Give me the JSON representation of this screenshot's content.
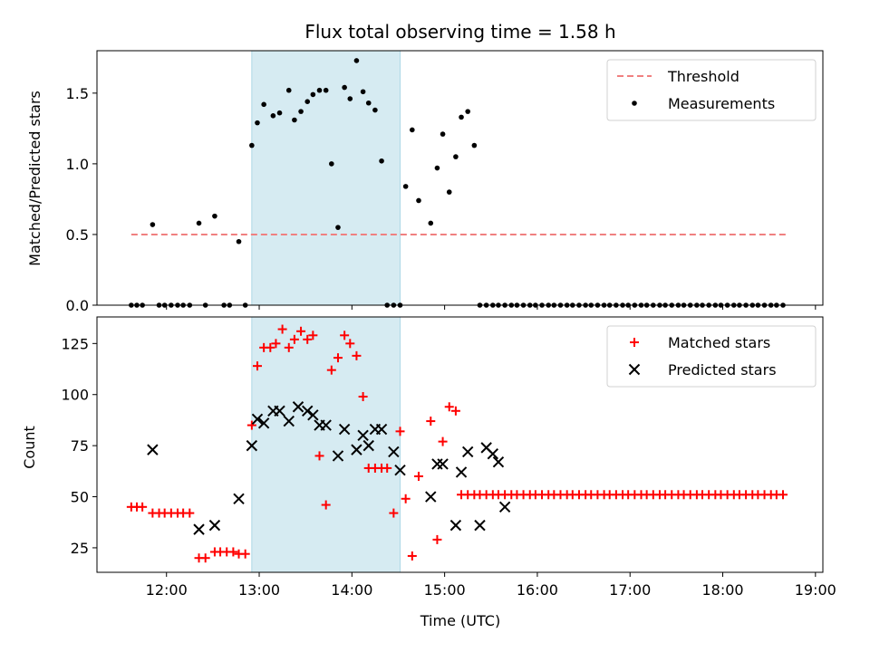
{
  "title": "Flux total observing time = 1.58 h",
  "colors": {
    "threshold": "#f08080",
    "measurement": "#000000",
    "matched": "#ff0000",
    "predicted": "#000000",
    "shade": "#add8e6"
  },
  "chart_data": [
    {
      "type": "scatter",
      "ylabel": "Matched/Predicted stars",
      "xlim": [
        11.25,
        19.08
      ],
      "ylim": [
        0,
        1.8
      ],
      "yticks": [
        0.0,
        0.5,
        1.0,
        1.5
      ],
      "ytick_labels": [
        "0.0",
        "0.5",
        "1.0",
        "1.5"
      ],
      "grid": false,
      "legend_position": "top-right",
      "shaded_interval": [
        12.92,
        14.52
      ],
      "threshold": {
        "name": "Threshold",
        "value": 0.5,
        "x": [
          11.62,
          18.68
        ]
      },
      "series": [
        {
          "name": "Measurements",
          "x": [
            11.62,
            11.68,
            11.74,
            11.85,
            11.92,
            11.98,
            12.05,
            12.12,
            12.18,
            12.25,
            12.35,
            12.42,
            12.52,
            12.62,
            12.68,
            12.78,
            12.85,
            12.92,
            12.98,
            13.05,
            13.15,
            13.22,
            13.32,
            13.38,
            13.45,
            13.52,
            13.58,
            13.65,
            13.72,
            13.78,
            13.85,
            13.92,
            13.98,
            14.05,
            14.12,
            14.18,
            14.25,
            14.32,
            14.38,
            14.45,
            14.52,
            14.58,
            14.65,
            14.72,
            14.85,
            14.92,
            14.98,
            15.05,
            15.12,
            15.18,
            15.25,
            15.32,
            15.38,
            15.45,
            15.52,
            15.58,
            15.65,
            15.72,
            15.78,
            15.85,
            15.92,
            15.98,
            16.05,
            16.12,
            16.18,
            16.25,
            16.32,
            16.38,
            16.45,
            16.52,
            16.58,
            16.65,
            16.72,
            16.78,
            16.85,
            16.92,
            16.98,
            17.05,
            17.12,
            17.18,
            17.25,
            17.32,
            17.38,
            17.45,
            17.52,
            17.58,
            17.65,
            17.72,
            17.78,
            17.85,
            17.92,
            17.98,
            18.05,
            18.12,
            18.18,
            18.25,
            18.32,
            18.38,
            18.45,
            18.52,
            18.58,
            18.65
          ],
          "y": [
            0,
            0,
            0,
            0.57,
            0,
            0,
            0,
            0,
            0,
            0,
            0.58,
            0,
            0.63,
            0,
            0,
            0.45,
            0,
            1.13,
            1.29,
            1.42,
            1.34,
            1.36,
            1.52,
            1.31,
            1.37,
            1.44,
            1.49,
            1.52,
            1.52,
            1.0,
            0.55,
            1.54,
            1.46,
            1.73,
            1.51,
            1.43,
            1.38,
            1.02,
            0,
            0,
            0,
            0.84,
            1.24,
            0.74,
            0.58,
            0.97,
            1.21,
            0.8,
            1.05,
            1.33,
            1.37,
            1.13,
            0,
            0,
            0,
            0,
            0,
            0,
            0,
            0,
            0,
            0,
            0,
            0,
            0,
            0,
            0,
            0,
            0,
            0,
            0,
            0,
            0,
            0,
            0,
            0,
            0,
            0,
            0,
            0,
            0,
            0,
            0,
            0,
            0,
            0,
            0,
            0,
            0,
            0,
            0,
            0,
            0,
            0,
            0,
            0,
            0,
            0,
            0,
            0,
            0,
            0
          ]
        }
      ]
    },
    {
      "type": "scatter",
      "xlabel": "Time (UTC)",
      "ylabel": "Count",
      "xlim": [
        11.25,
        19.08
      ],
      "ylim": [
        13,
        138
      ],
      "xticks": [
        12,
        13,
        14,
        15,
        16,
        17,
        18,
        19
      ],
      "xtick_labels": [
        "12:00",
        "13:00",
        "14:00",
        "15:00",
        "16:00",
        "17:00",
        "18:00",
        "19:00"
      ],
      "yticks": [
        25,
        50,
        75,
        100,
        125
      ],
      "ytick_labels": [
        "25",
        "50",
        "75",
        "100",
        "125"
      ],
      "grid": false,
      "legend_position": "top-right",
      "shaded_interval": [
        12.92,
        14.52
      ],
      "series": [
        {
          "name": "Matched stars",
          "marker": "plus",
          "x": [
            11.62,
            11.68,
            11.74,
            11.85,
            11.92,
            11.98,
            12.05,
            12.12,
            12.18,
            12.25,
            12.35,
            12.42,
            12.52,
            12.58,
            12.65,
            12.72,
            12.78,
            12.85,
            12.92,
            12.98,
            13.05,
            13.12,
            13.18,
            13.25,
            13.32,
            13.38,
            13.45,
            13.52,
            13.58,
            13.65,
            13.72,
            13.78,
            13.85,
            13.92,
            13.98,
            14.05,
            14.12,
            14.18,
            14.25,
            14.32,
            14.38,
            14.45,
            14.52,
            14.58,
            14.65,
            14.72,
            14.85,
            14.92,
            14.98,
            15.05,
            15.12,
            15.18,
            15.25,
            15.32,
            15.38,
            15.45,
            15.52,
            15.58,
            15.65,
            15.72,
            15.78,
            15.85,
            15.92,
            15.98,
            16.05,
            16.12,
            16.18,
            16.25,
            16.32,
            16.38,
            16.45,
            16.52,
            16.58,
            16.65,
            16.72,
            16.78,
            16.85,
            16.92,
            16.98,
            17.05,
            17.12,
            17.18,
            17.25,
            17.32,
            17.38,
            17.45,
            17.52,
            17.58,
            17.65,
            17.72,
            17.78,
            17.85,
            17.92,
            17.98,
            18.05,
            18.12,
            18.18,
            18.25,
            18.32,
            18.38,
            18.45,
            18.52,
            18.58,
            18.65
          ],
          "y": [
            45,
            45,
            45,
            42,
            42,
            42,
            42,
            42,
            42,
            42,
            20,
            20,
            23,
            23,
            23,
            23,
            22,
            22,
            85,
            114,
            123,
            123,
            125,
            132,
            123,
            127,
            131,
            127,
            129,
            70,
            46,
            112,
            118,
            129,
            125,
            119,
            99,
            64,
            64,
            64,
            64,
            42,
            82,
            49,
            21,
            60,
            87,
            29,
            77,
            94,
            92,
            51,
            51,
            51,
            51,
            51,
            51,
            51,
            51,
            51,
            51,
            51,
            51,
            51,
            51,
            51,
            51,
            51,
            51,
            51,
            51,
            51,
            51,
            51,
            51,
            51,
            51,
            51,
            51,
            51,
            51,
            51,
            51,
            51,
            51,
            51,
            51,
            51,
            51,
            51,
            51,
            51,
            51,
            51,
            51,
            51,
            51,
            51,
            51,
            51,
            51,
            51,
            51,
            51
          ]
        },
        {
          "name": "Predicted stars",
          "marker": "x",
          "x": [
            11.85,
            12.35,
            12.52,
            12.78,
            12.92,
            12.98,
            13.05,
            13.15,
            13.22,
            13.32,
            13.42,
            13.52,
            13.58,
            13.65,
            13.72,
            13.85,
            13.92,
            14.05,
            14.12,
            14.18,
            14.25,
            14.32,
            14.45,
            14.52,
            14.85,
            14.92,
            14.98,
            15.12,
            15.18,
            15.25,
            15.38,
            15.45,
            15.52,
            15.58,
            15.65
          ],
          "y": [
            73,
            34,
            36,
            49,
            75,
            88,
            86,
            92,
            92,
            87,
            94,
            92,
            90,
            85,
            85,
            70,
            83,
            73,
            80,
            75,
            83,
            83,
            72,
            63,
            50,
            66,
            66,
            36,
            62,
            72,
            36,
            74,
            71,
            67,
            45
          ]
        }
      ]
    }
  ]
}
